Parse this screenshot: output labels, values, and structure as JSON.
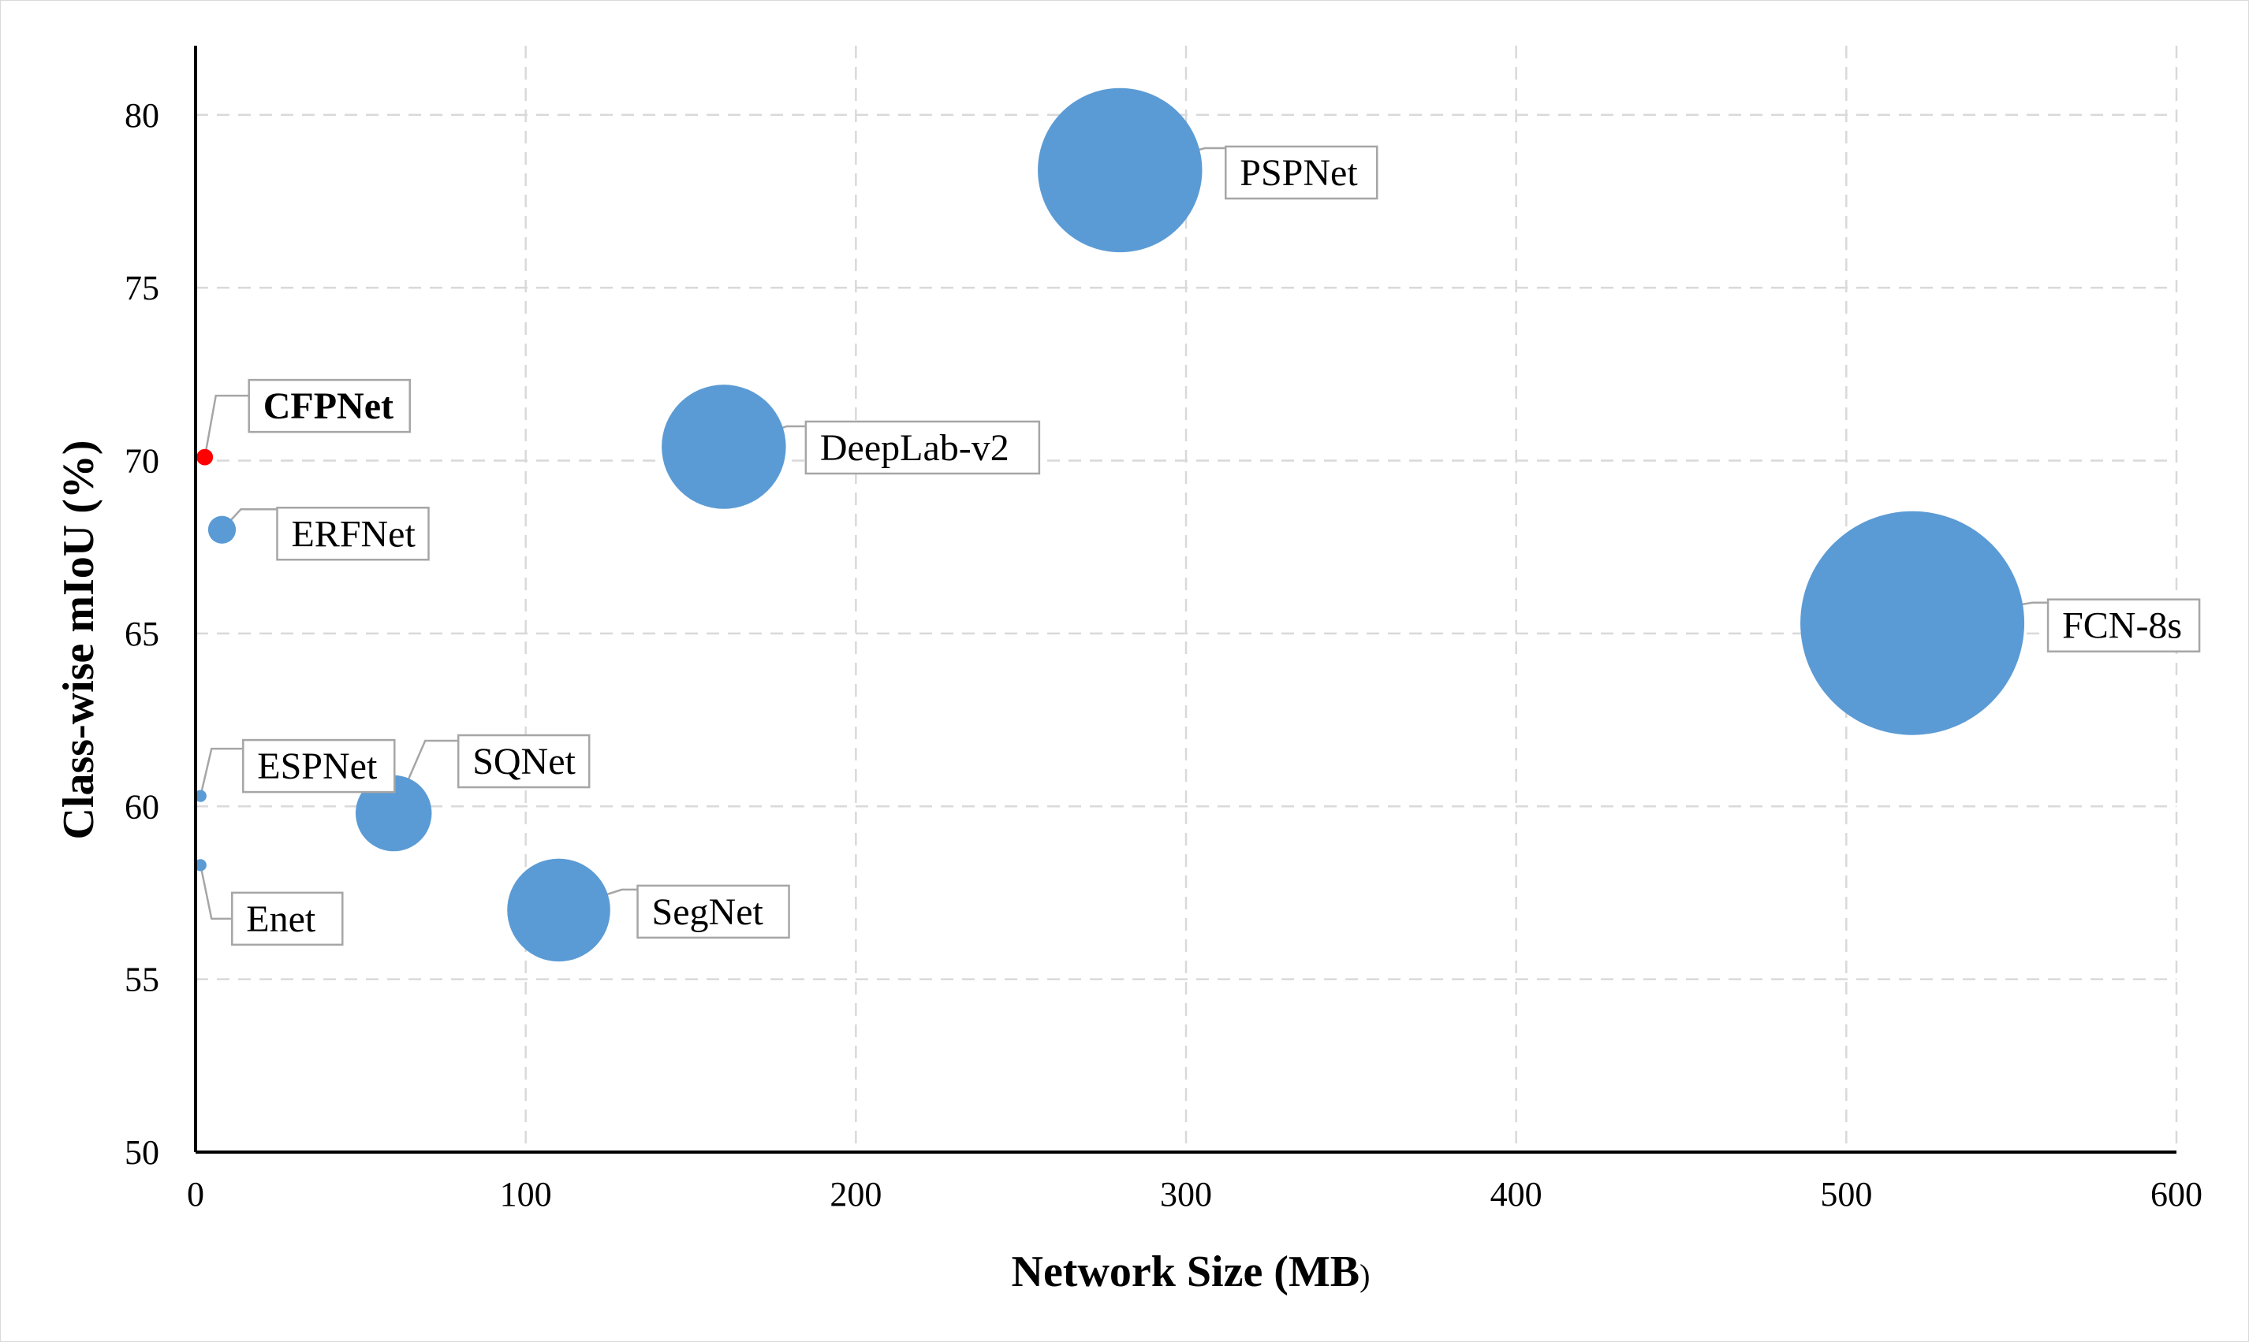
{
  "chart_data": {
    "type": "scatter",
    "subtype": "bubble",
    "title": "",
    "xlabel": "Network Size (MB",
    "xlabel_tail": ")",
    "ylabel": "Class-wise mIoU (%)",
    "xlim": [
      0,
      600
    ],
    "ylim": [
      50,
      82
    ],
    "xticks": [
      "0",
      "100",
      "200",
      "300",
      "400",
      "500",
      "600"
    ],
    "yticks": [
      "50",
      "55",
      "60",
      "65",
      "70",
      "75",
      "80"
    ],
    "grid": true,
    "grid_style": "dashed",
    "legend": "none",
    "colors": {
      "bubble": "#5b9bd5",
      "highlight": "#ff0000",
      "grid": "#d9d9d9",
      "axis": "#000000",
      "leader": "#a6a6a6",
      "label_border": "#a6a6a6"
    },
    "points": [
      {
        "name": "CFPNet",
        "x": 2.8,
        "y": 70.1,
        "size": 2.8,
        "color": "#ff0000",
        "bold": true
      },
      {
        "name": "ERFNet",
        "x": 8,
        "y": 68.0,
        "size": 8,
        "color": "#5b9bd5",
        "bold": false
      },
      {
        "name": "ESPNet",
        "x": 1.5,
        "y": 60.3,
        "size": 1.5,
        "color": "#5b9bd5",
        "bold": false
      },
      {
        "name": "Enet",
        "x": 1.5,
        "y": 58.3,
        "size": 1.5,
        "color": "#5b9bd5",
        "bold": false
      },
      {
        "name": "SQNet",
        "x": 60,
        "y": 59.8,
        "size": 60,
        "color": "#5b9bd5",
        "bold": false
      },
      {
        "name": "SegNet",
        "x": 110,
        "y": 57.0,
        "size": 110,
        "color": "#5b9bd5",
        "bold": false
      },
      {
        "name": "DeepLab-v2",
        "x": 160,
        "y": 70.4,
        "size": 160,
        "color": "#5b9bd5",
        "bold": false
      },
      {
        "name": "PSPNet",
        "x": 280,
        "y": 78.4,
        "size": 280,
        "color": "#5b9bd5",
        "bold": false
      },
      {
        "name": "FCN-8s",
        "x": 520,
        "y": 65.3,
        "size": 520,
        "color": "#5b9bd5",
        "bold": false
      }
    ]
  }
}
